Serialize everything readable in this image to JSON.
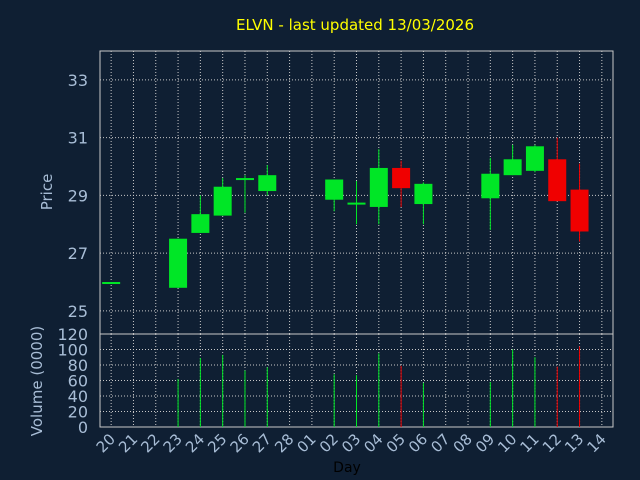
{
  "chart_data": {
    "type": "candlestick",
    "title": "ELVN - last updated 13/03/2026",
    "xlabel": "Day",
    "ylabel_price": "Price",
    "ylabel_volume": "Volume (0000)",
    "price_ticks": [
      25,
      27,
      29,
      31,
      33
    ],
    "price_ylim": [
      24.2,
      34.0
    ],
    "volume_ticks": [
      0,
      20,
      40,
      60,
      80,
      100,
      120
    ],
    "volume_ylim": [
      0,
      120
    ],
    "x_tick_labels": [
      "20",
      "21",
      "22",
      "23",
      "24",
      "25",
      "26",
      "27",
      "28",
      "01",
      "02",
      "03",
      "04",
      "05",
      "06",
      "07",
      "08",
      "09",
      "10",
      "11",
      "12",
      "13",
      "14"
    ],
    "grid": true,
    "colors": {
      "background": "#0f1f33",
      "up": "#00e626",
      "down": "#f00000",
      "grid": "#c8c8c8",
      "title": "#ffff00",
      "axis_text": "#a8bdd6"
    },
    "candles": [
      {
        "x": 0,
        "open": 26.0,
        "close": 26.0,
        "high": 26.0,
        "low": 26.0,
        "volume": 0
      },
      {
        "x": 3,
        "open": 25.8,
        "close": 27.5,
        "high": 27.5,
        "low": 25.8,
        "volume": 62
      },
      {
        "x": 4,
        "open": 27.7,
        "close": 28.35,
        "high": 29.0,
        "low": 27.7,
        "volume": 89
      },
      {
        "x": 5,
        "open": 28.3,
        "close": 29.3,
        "high": 29.6,
        "low": 28.3,
        "volume": 93
      },
      {
        "x": 6,
        "open": 29.55,
        "close": 29.6,
        "high": 29.7,
        "low": 28.4,
        "volume": 73
      },
      {
        "x": 7,
        "open": 29.15,
        "close": 29.7,
        "high": 30.05,
        "low": 29.0,
        "volume": 77
      },
      {
        "x": 10,
        "open": 28.85,
        "close": 29.55,
        "high": 29.55,
        "low": 28.45,
        "volume": 68
      },
      {
        "x": 11,
        "open": 28.7,
        "close": 28.75,
        "high": 29.5,
        "low": 28.0,
        "volume": 67
      },
      {
        "x": 12,
        "open": 28.6,
        "close": 29.95,
        "high": 30.6,
        "low": 28.0,
        "volume": 95
      },
      {
        "x": 13,
        "open": 29.95,
        "close": 29.25,
        "high": 30.2,
        "low": 28.6,
        "volume": 79
      },
      {
        "x": 14,
        "open": 28.7,
        "close": 29.4,
        "high": 29.45,
        "low": 28.0,
        "volume": 57
      },
      {
        "x": 17,
        "open": 28.9,
        "close": 29.75,
        "high": 30.3,
        "low": 27.8,
        "volume": 58
      },
      {
        "x": 18,
        "open": 29.7,
        "close": 30.25,
        "high": 30.75,
        "low": 29.7,
        "volume": 100
      },
      {
        "x": 19,
        "open": 29.85,
        "close": 30.7,
        "high": 30.75,
        "low": 29.8,
        "volume": 90
      },
      {
        "x": 20,
        "open": 30.25,
        "close": 28.8,
        "high": 31.0,
        "low": 28.8,
        "volume": 78
      },
      {
        "x": 21,
        "open": 29.2,
        "close": 27.75,
        "high": 30.1,
        "low": 27.4,
        "volume": 104
      }
    ]
  }
}
